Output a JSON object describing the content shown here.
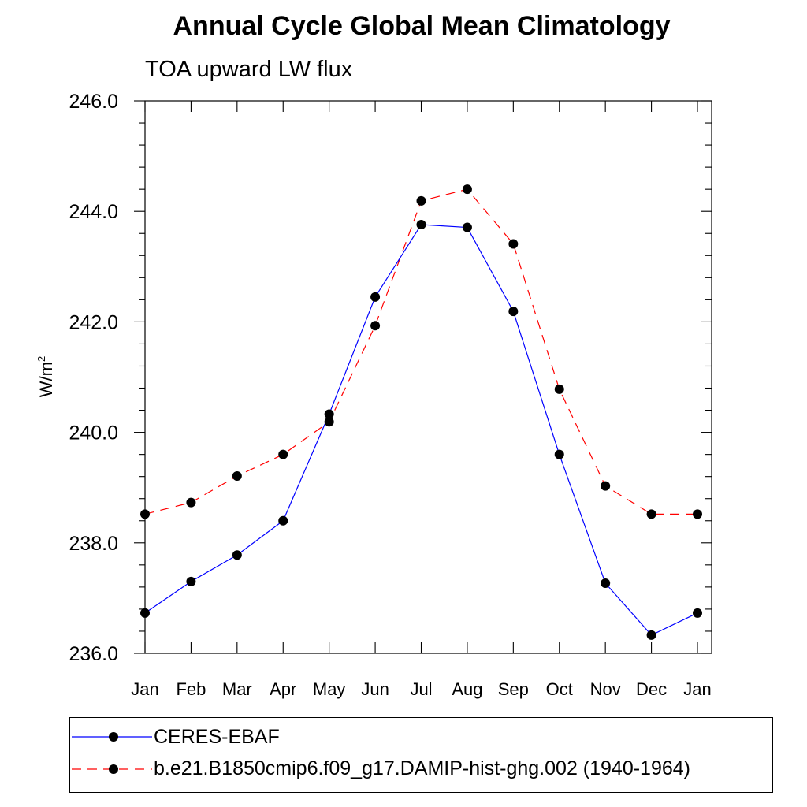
{
  "chart_data": {
    "type": "line",
    "title": "Annual Cycle Global Mean Climatology",
    "subtitle": "TOA upward LW flux",
    "ylabel": "W/m",
    "ylabel_sup": "2",
    "xlabel": "",
    "ylim": [
      236.0,
      246.0
    ],
    "yticks": [
      "236.0",
      "238.0",
      "240.0",
      "242.0",
      "244.0",
      "246.0"
    ],
    "categories": [
      "Jan",
      "Feb",
      "Mar",
      "Apr",
      "May",
      "Jun",
      "Jul",
      "Aug",
      "Sep",
      "Oct",
      "Nov",
      "Dec",
      "Jan"
    ],
    "series": [
      {
        "name": "CERES-EBAF",
        "color": "#0000ff",
        "dash": "solid",
        "values": [
          236.73,
          237.3,
          237.78,
          238.4,
          240.33,
          242.45,
          243.76,
          243.71,
          242.19,
          239.6,
          237.27,
          236.33,
          236.73
        ]
      },
      {
        "name": "b.e21.B1850cmip6.f09_g17.DAMIP-hist-ghg.002 (1940-1964)",
        "color": "#ff0000",
        "dash": "dashed",
        "values": [
          238.52,
          238.73,
          239.21,
          239.6,
          240.19,
          241.93,
          244.19,
          244.4,
          243.41,
          240.78,
          239.03,
          238.52,
          238.52
        ]
      }
    ],
    "grid": false,
    "legend_position": "bottom"
  }
}
